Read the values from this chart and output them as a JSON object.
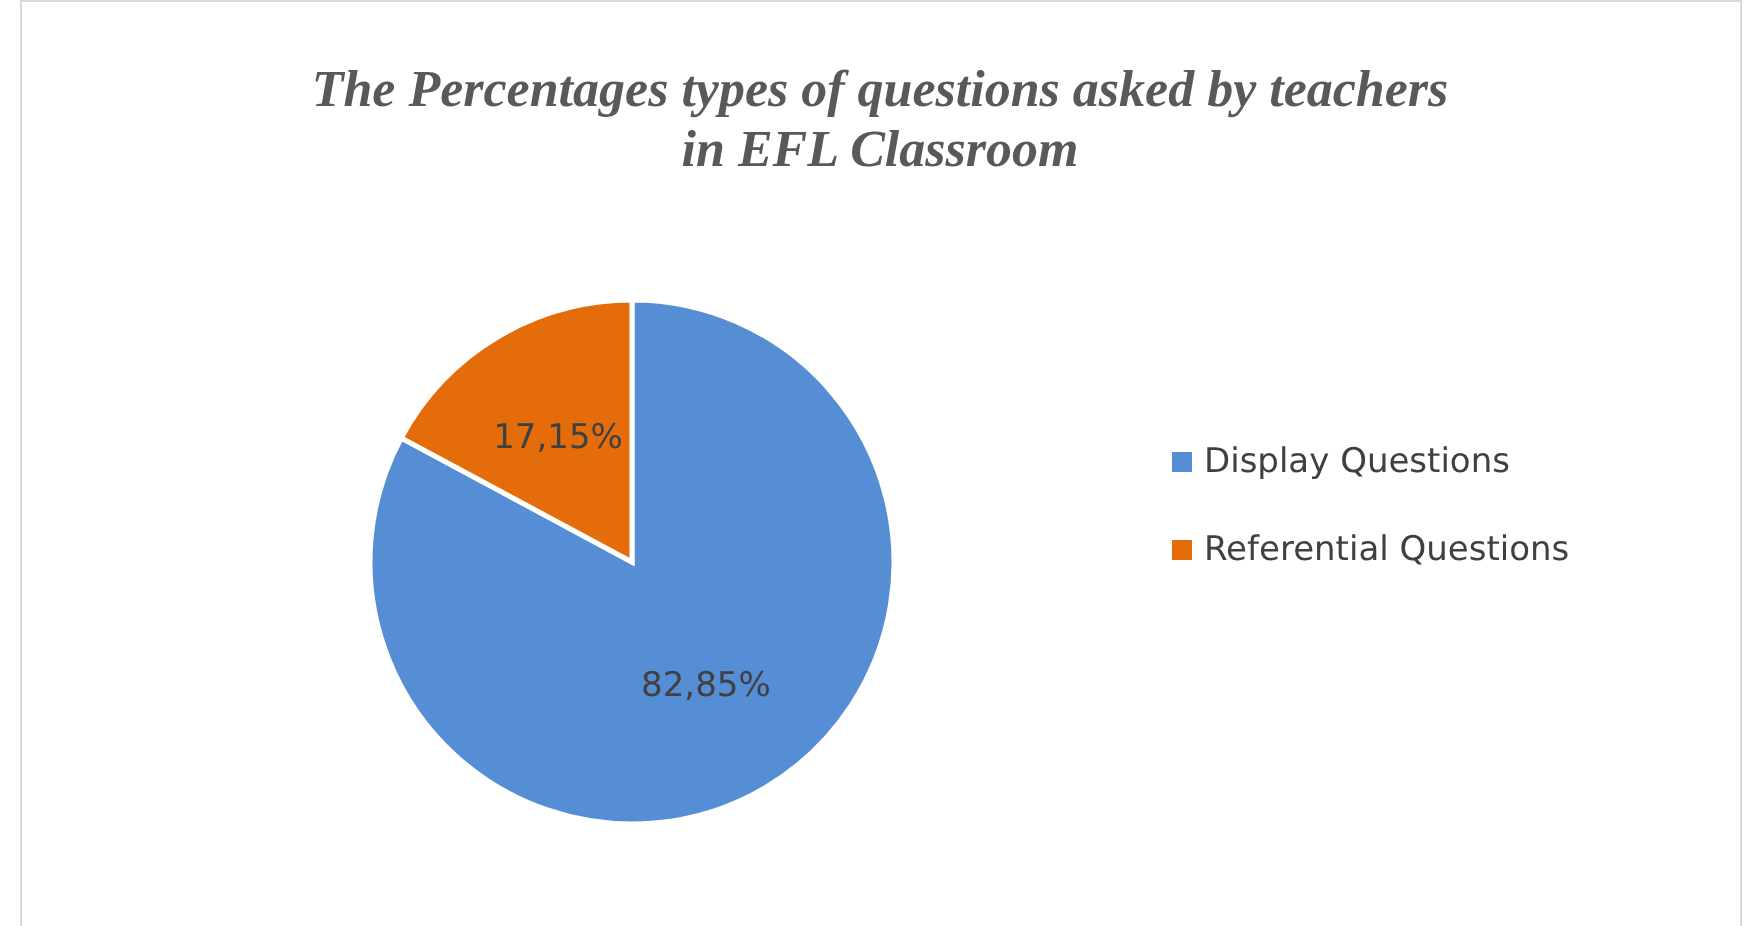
{
  "chart_data": {
    "type": "pie",
    "title": "The Percentages types of questions asked by teachers in EFL Classroom",
    "categories": [
      "Display Questions",
      "Referential Questions"
    ],
    "values": [
      82.85,
      17.15
    ],
    "colors": [
      "#558ed5",
      "#e46c0a"
    ],
    "value_labels": [
      "82,85%",
      "17,15%"
    ],
    "legend": "right"
  }
}
